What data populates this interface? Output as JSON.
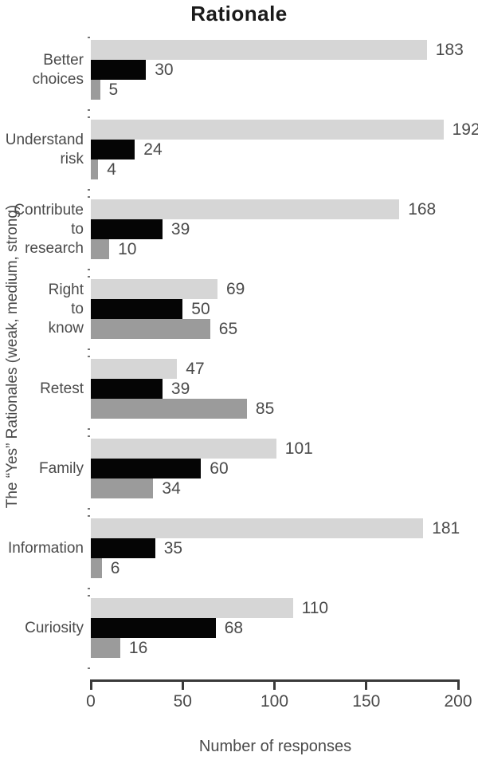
{
  "chart_data": {
    "type": "bar",
    "orientation": "horizontal",
    "title": "Rationale",
    "xlabel": "Number of responses",
    "ylabel": "The “Yes” Rationales (weak, medium, strong)",
    "xlim": [
      0,
      200
    ],
    "xticks": [
      0,
      50,
      100,
      150,
      200
    ],
    "grid": false,
    "legend": "none",
    "value_labels_shown": true,
    "categories": [
      "Better choices",
      "Understand risk",
      "Contribute to research",
      "Right to know",
      "Retest",
      "Family",
      "Information",
      "Curiosity"
    ],
    "category_lines": [
      [
        "Better",
        "choices"
      ],
      [
        "Understand",
        "risk"
      ],
      [
        "Contribute",
        "to",
        "research"
      ],
      [
        "Right",
        "to",
        "know"
      ],
      [
        "Retest"
      ],
      [
        "Family"
      ],
      [
        "Information"
      ],
      [
        "Curiosity"
      ]
    ],
    "series": [
      {
        "name": "light-gray-bar",
        "color": "#d6d6d6",
        "values": [
          183,
          192,
          168,
          69,
          47,
          101,
          181,
          110
        ]
      },
      {
        "name": "black-bar",
        "color": "#050505",
        "values": [
          30,
          24,
          39,
          50,
          39,
          60,
          35,
          68
        ]
      },
      {
        "name": "medium-gray-bar",
        "color": "#9b9b9b",
        "values": [
          5,
          4,
          10,
          65,
          85,
          34,
          6,
          16
        ]
      }
    ]
  },
  "colors": {
    "background": "#ffffff",
    "text": "#4a4a4a",
    "title_text": "#1a1a1a",
    "axis": "#3a3a3a"
  }
}
